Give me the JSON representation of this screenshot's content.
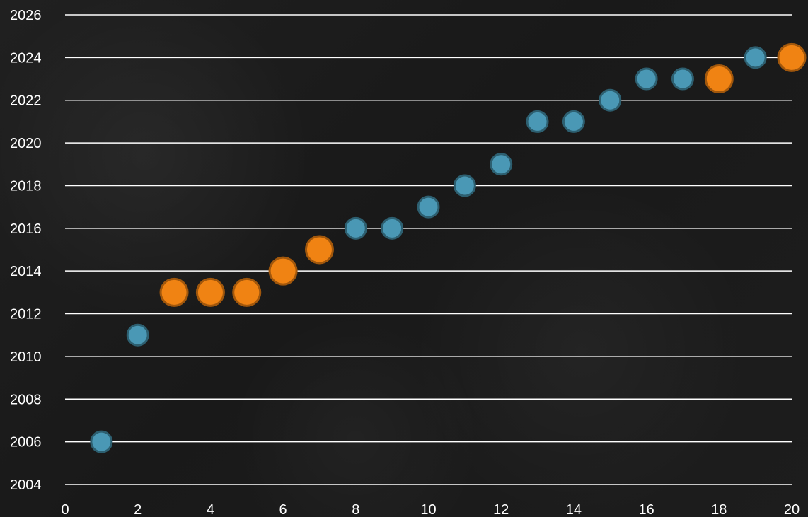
{
  "chart_data": {
    "type": "scatter",
    "title": "",
    "xlabel": "",
    "ylabel": "",
    "xlim": [
      0,
      20
    ],
    "ylim": [
      2004,
      2026
    ],
    "x_ticks": [
      "0",
      "2",
      "4",
      "6",
      "8",
      "10",
      "12",
      "14",
      "16",
      "18",
      "20"
    ],
    "y_ticks": [
      "2026",
      "2024",
      "2022",
      "2020",
      "2018",
      "2016",
      "2014",
      "2012",
      "2010",
      "2008",
      "2006",
      "2004"
    ],
    "grid": "horizontal",
    "legend": "none",
    "series": [
      {
        "color": "#4a98b5",
        "points": [
          {
            "x": 1,
            "y": 2006
          },
          {
            "x": 2,
            "y": 2011
          },
          {
            "x": 8,
            "y": 2016
          },
          {
            "x": 9,
            "y": 2016
          },
          {
            "x": 10,
            "y": 2017
          },
          {
            "x": 11,
            "y": 2018
          },
          {
            "x": 12,
            "y": 2019
          },
          {
            "x": 13,
            "y": 2021
          },
          {
            "x": 14,
            "y": 2021
          },
          {
            "x": 15,
            "y": 2022
          },
          {
            "x": 16,
            "y": 2023
          },
          {
            "x": 17,
            "y": 2023
          },
          {
            "x": 19,
            "y": 2024
          }
        ]
      },
      {
        "color": "#f08313",
        "points": [
          {
            "x": 3,
            "y": 2013
          },
          {
            "x": 4,
            "y": 2013
          },
          {
            "x": 5,
            "y": 2013
          },
          {
            "x": 6,
            "y": 2014
          },
          {
            "x": 7,
            "y": 2015
          },
          {
            "x": 18,
            "y": 2023
          },
          {
            "x": 20,
            "y": 2024
          }
        ]
      }
    ]
  }
}
